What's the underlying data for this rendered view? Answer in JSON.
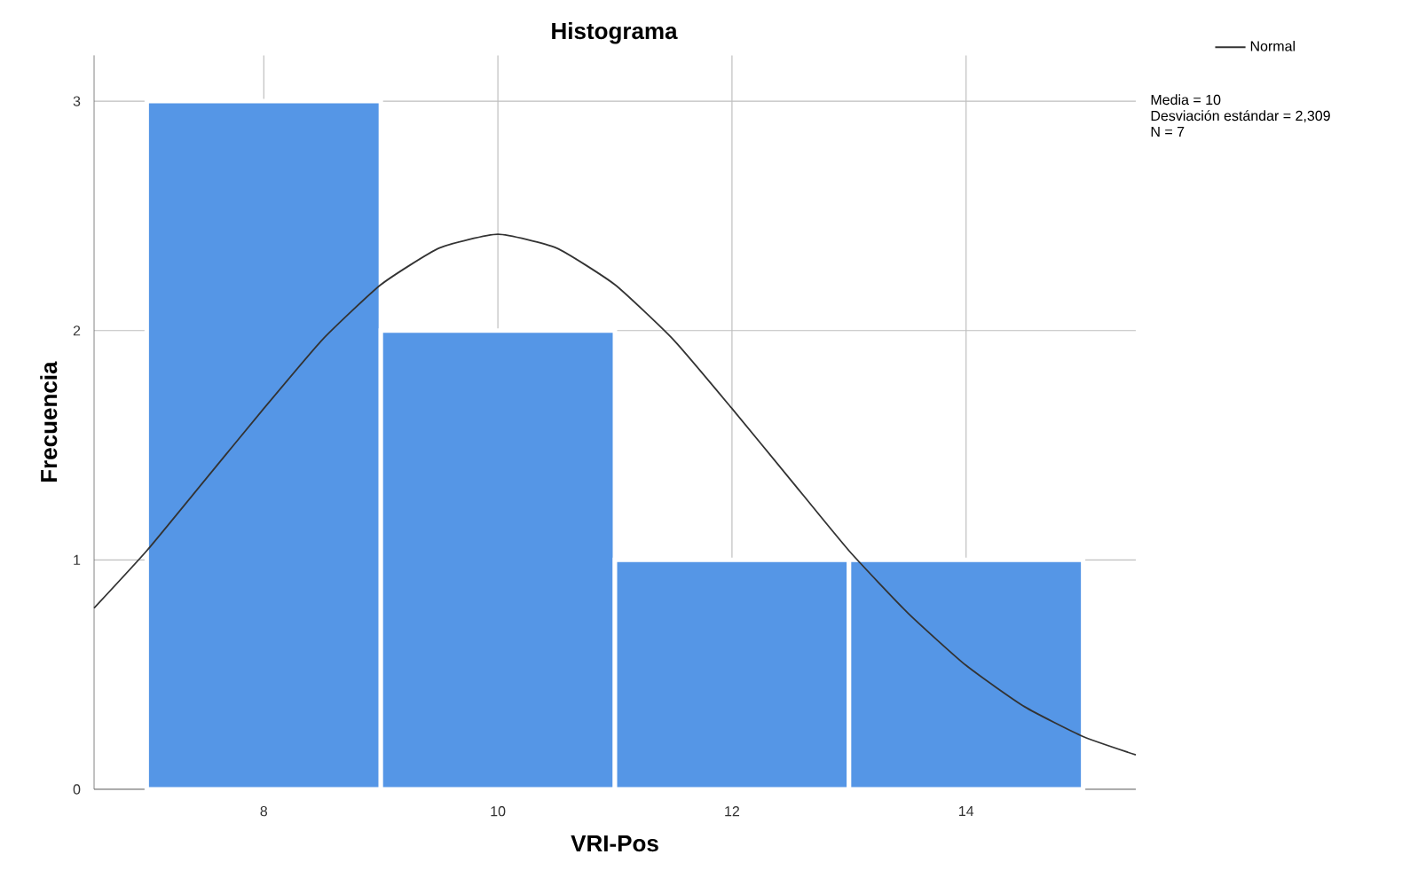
{
  "chart_data": {
    "type": "histogram",
    "title": "Histograma",
    "xlabel": "VRI-Pos",
    "ylabel": "Frecuencia",
    "series": [
      {
        "bins": [
          7,
          9,
          11,
          13,
          15
        ],
        "values": [
          3,
          2,
          1,
          1
        ],
        "color": "#5596e6"
      },
      {
        "type": "line",
        "name": "Normal",
        "color": "#333333",
        "x": [
          6.55,
          7,
          7.5,
          8,
          8.5,
          9,
          9.5,
          10,
          10.5,
          11,
          11.5,
          12,
          12.5,
          13,
          13.5,
          14,
          14.5,
          15,
          15.45
        ],
        "values": [
          0.79,
          1.04,
          1.35,
          1.66,
          1.96,
          2.2,
          2.36,
          2.42,
          2.36,
          2.2,
          1.96,
          1.66,
          1.35,
          1.04,
          0.77,
          0.54,
          0.36,
          0.23,
          0.15
        ]
      }
    ],
    "annotations": [
      "Media = 10",
      "Desviación estándar = 2,309",
      "N = 7"
    ],
    "xlim": [
      6.55,
      15.45
    ],
    "ylim": [
      0,
      3.2
    ],
    "xticks": [
      8,
      10,
      12,
      14
    ],
    "yticks": [
      0,
      1,
      2,
      3
    ],
    "grid": true,
    "legend": "top right",
    "line_style": "solid",
    "marker": "none"
  }
}
